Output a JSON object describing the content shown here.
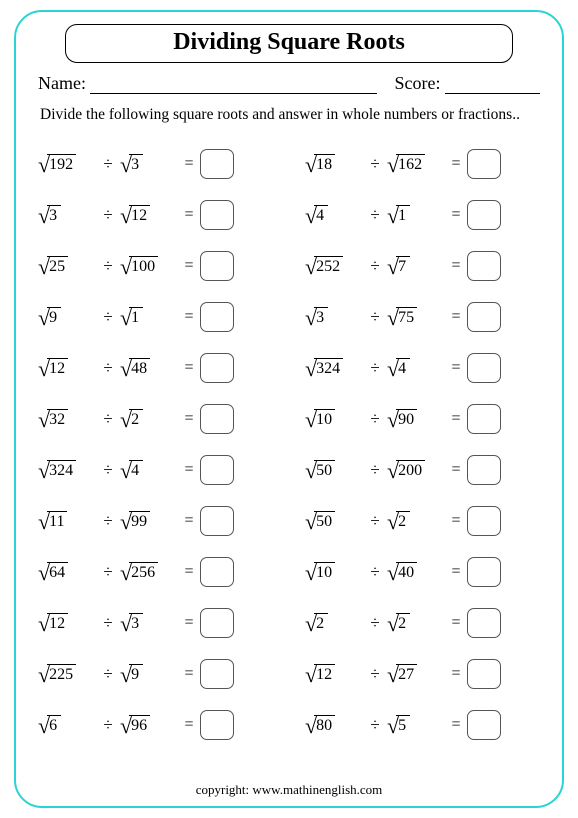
{
  "title": "Dividing Square Roots",
  "name_label": "Name: ",
  "score_label": "Score: ",
  "instructions": "Divide the following square roots and answer in whole numbers or fractions..",
  "operator": "÷",
  "equals": "=",
  "left_column": [
    {
      "a": "192",
      "b": "3"
    },
    {
      "a": "3",
      "b": "12"
    },
    {
      "a": "25",
      "b": "100"
    },
    {
      "a": "9",
      "b": "1"
    },
    {
      "a": "12",
      "b": "48"
    },
    {
      "a": "32",
      "b": "2"
    },
    {
      "a": "324",
      "b": "4"
    },
    {
      "a": "11",
      "b": "99"
    },
    {
      "a": "64",
      "b": "256"
    },
    {
      "a": "12",
      "b": "3"
    },
    {
      "a": "225",
      "b": "9"
    },
    {
      "a": "6",
      "b": "96"
    }
  ],
  "right_column": [
    {
      "a": "18",
      "b": "162"
    },
    {
      "a": "4",
      "b": "1"
    },
    {
      "a": "252",
      "b": "7"
    },
    {
      "a": "3",
      "b": "75"
    },
    {
      "a": "324",
      "b": "4"
    },
    {
      "a": "10",
      "b": "90"
    },
    {
      "a": "50",
      "b": "200"
    },
    {
      "a": "50",
      "b": "2"
    },
    {
      "a": "10",
      "b": "40"
    },
    {
      "a": "2",
      "b": "2"
    },
    {
      "a": "12",
      "b": "27"
    },
    {
      "a": "80",
      "b": "5"
    }
  ],
  "footer_label": "copyright:   ",
  "footer_site": "www.mathinenglish.com"
}
